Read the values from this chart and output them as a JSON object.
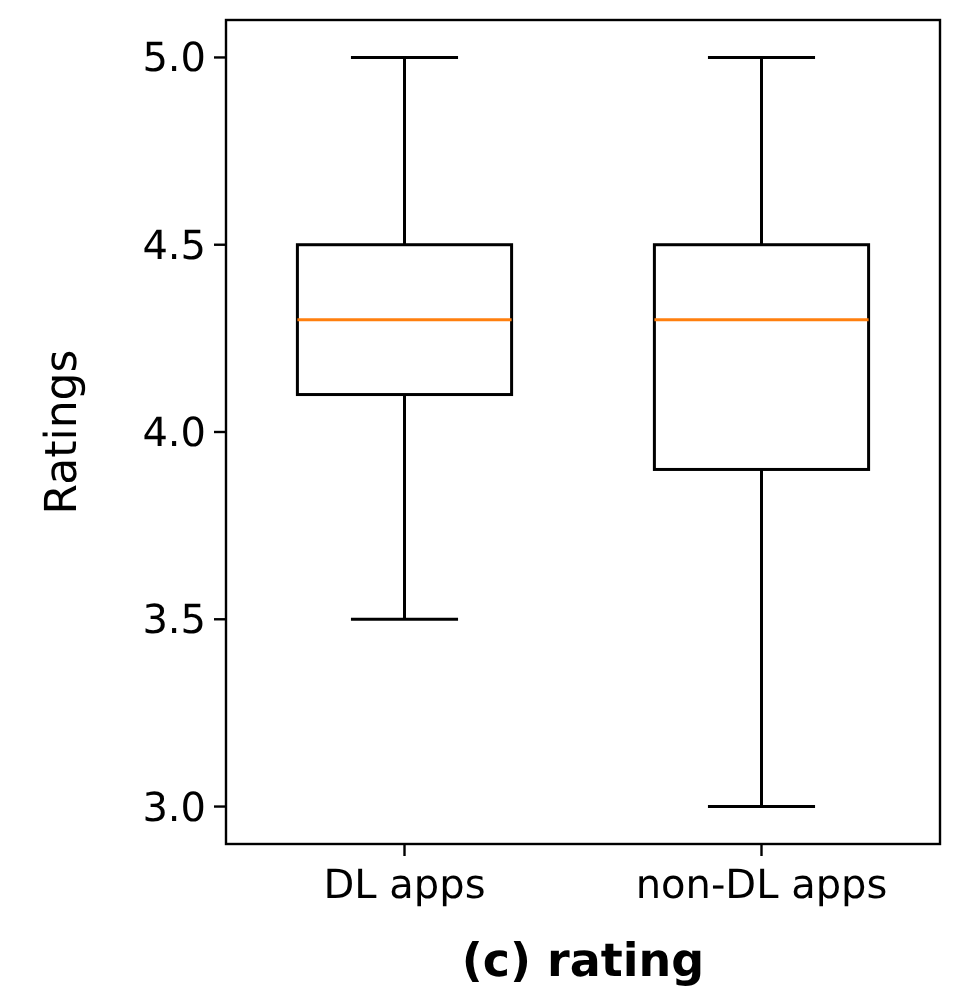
{
  "chart_data": {
    "type": "box",
    "title": "(c) rating",
    "ylabel": "Ratings",
    "categories": [
      "DL apps",
      "non-DL apps"
    ],
    "boxes": [
      {
        "low": 3.5,
        "q1": 4.1,
        "median": 4.3,
        "q3": 4.5,
        "high": 5.0
      },
      {
        "low": 3.0,
        "q1": 3.9,
        "median": 4.3,
        "q3": 4.5,
        "high": 5.0
      }
    ],
    "ylim": [
      2.9,
      5.1
    ],
    "yticks": [
      {
        "value": 3,
        "label": "3.0"
      },
      {
        "value": 3.5,
        "label": "3.5"
      },
      {
        "value": 4,
        "label": "4.0"
      },
      {
        "value": 4.5,
        "label": "4.5"
      },
      {
        "value": 5,
        "label": "5.0"
      }
    ],
    "grid": false
  }
}
